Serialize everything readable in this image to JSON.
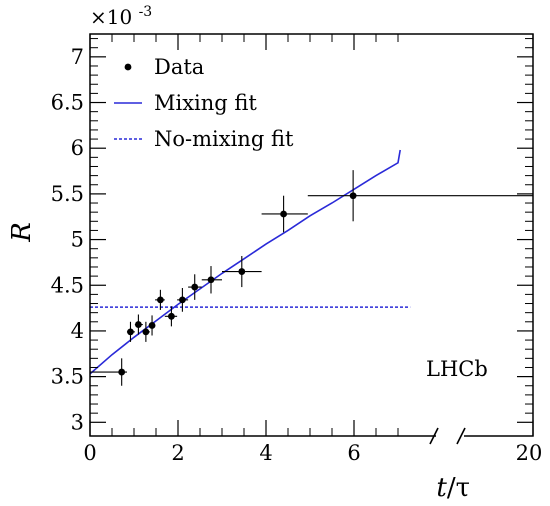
{
  "chart_data": {
    "type": "scatter",
    "ylabel": "R",
    "xlabel_italic": "t",
    "xlabel_rest": "/τ",
    "y_multiplier_base": "×10",
    "y_multiplier_exp": "-3",
    "brand": "LHCb",
    "xlim": [
      0,
      7.6
    ],
    "ylim": [
      2.85,
      7.25
    ],
    "x_ticks": [
      "0",
      "2",
      "4",
      "6",
      "20"
    ],
    "y_ticks": [
      "3",
      "3.5",
      "4",
      "4.5",
      "5",
      "5.5",
      "6",
      "6.5",
      "7"
    ],
    "x_axis_break": true,
    "grid": false,
    "legend": {
      "placement": "top-left",
      "entries": [
        {
          "label": "Data",
          "style": "marker"
        },
        {
          "label": "Mixing fit",
          "style": "solid-line"
        },
        {
          "label": "No-mixing fit",
          "style": "dashed-line"
        }
      ]
    },
    "series": [
      {
        "name": "Data",
        "points": [
          {
            "x": 0.72,
            "y": 3.55,
            "xlo": 0.0,
            "xhi": 0.84,
            "yerr": 0.15
          },
          {
            "x": 0.92,
            "y": 3.99,
            "xlo": 0.84,
            "xhi": 1.02,
            "yerr": 0.11
          },
          {
            "x": 1.1,
            "y": 4.07,
            "xlo": 1.02,
            "xhi": 1.2,
            "yerr": 0.11
          },
          {
            "x": 1.27,
            "y": 3.99,
            "xlo": 1.2,
            "xhi": 1.36,
            "yerr": 0.11
          },
          {
            "x": 1.41,
            "y": 4.06,
            "xlo": 1.36,
            "xhi": 1.48,
            "yerr": 0.11
          },
          {
            "x": 1.6,
            "y": 4.34,
            "xlo": 1.48,
            "xhi": 1.7,
            "yerr": 0.11
          },
          {
            "x": 1.85,
            "y": 4.16,
            "xlo": 1.7,
            "xhi": 1.98,
            "yerr": 0.11
          },
          {
            "x": 2.1,
            "y": 4.34,
            "xlo": 1.98,
            "xhi": 2.23,
            "yerr": 0.13
          },
          {
            "x": 2.38,
            "y": 4.48,
            "xlo": 2.23,
            "xhi": 2.54,
            "yerr": 0.14
          },
          {
            "x": 2.75,
            "y": 4.56,
            "xlo": 2.54,
            "xhi": 3.0,
            "yerr": 0.15
          },
          {
            "x": 3.45,
            "y": 4.65,
            "xlo": 3.0,
            "xhi": 3.9,
            "yerr": 0.17
          },
          {
            "x": 4.4,
            "y": 5.28,
            "xlo": 3.9,
            "xhi": 4.95,
            "yerr": 0.2
          },
          {
            "x": 5.98,
            "y": 5.48,
            "xlo": 4.95,
            "xhi": 7.6,
            "yerr": 0.28
          }
        ]
      },
      {
        "name": "Mixing fit",
        "x": [
          0,
          0.5,
          1,
          1.5,
          2,
          2.5,
          3,
          3.5,
          4,
          4.5,
          5,
          5.5,
          6,
          6.5,
          7,
          7.05
        ],
        "y": [
          3.53,
          3.74,
          3.93,
          4.11,
          4.29,
          4.46,
          4.63,
          4.79,
          4.95,
          5.1,
          5.26,
          5.4,
          5.55,
          5.7,
          5.84,
          5.98
        ]
      },
      {
        "name": "No-mixing fit",
        "x": [
          0,
          7.05
        ],
        "y": [
          4.26,
          4.26
        ]
      }
    ]
  }
}
